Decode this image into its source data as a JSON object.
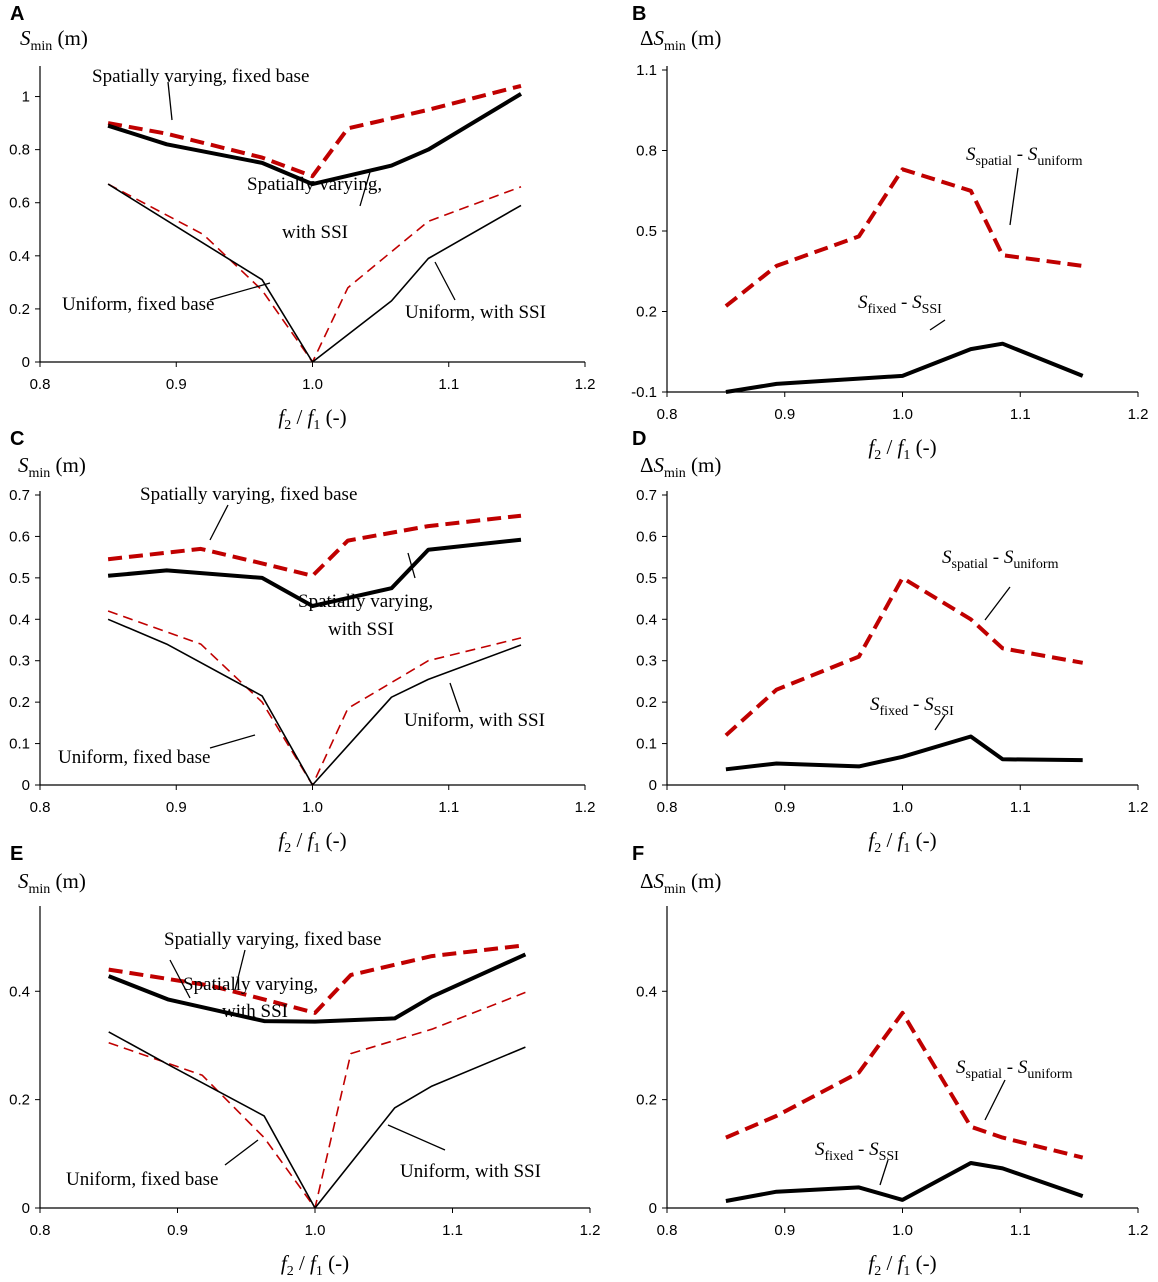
{
  "chart_data": [
    {
      "panel": "A",
      "type": "line",
      "ylabel_sym": "S",
      "ylabel_sub": "min",
      "ylabel_unit": " (m)",
      "xlabel_f2": "f",
      "xlabel_sub2": "2",
      "xlabel_sep": " / ",
      "xlabel_f1": "f",
      "xlabel_sub1": "1",
      "xlabel_unit": " (-)",
      "xlim": [
        0.8,
        1.2
      ],
      "ylim": [
        0,
        1.1
      ],
      "xticks": [
        0.8,
        0.9,
        1.0,
        1.1,
        1.2
      ],
      "xtick_labels": [
        "0.8",
        "0.9",
        "1.0",
        "1.1",
        "1.2"
      ],
      "yticks": [
        0,
        0.2,
        0.4,
        0.6,
        0.8,
        1.0
      ],
      "ytick_labels": [
        "0",
        "0.2",
        "0.4",
        "0.6",
        "0.8",
        "1"
      ],
      "series": [
        {
          "name": "Spatially varying, fixed base",
          "style": "thick-dashed",
          "color": "#c00000",
          "x": [
            0.85,
            0.893,
            0.963,
            1.0,
            1.026,
            1.085,
            1.153
          ],
          "y": [
            0.9,
            0.86,
            0.77,
            0.7,
            0.88,
            0.95,
            1.04
          ]
        },
        {
          "name": "Spatially varying, with SSI",
          "style": "thick-solid",
          "color": "#000000",
          "x": [
            0.85,
            0.893,
            0.963,
            1.0,
            1.058,
            1.085,
            1.153
          ],
          "y": [
            0.89,
            0.82,
            0.75,
            0.67,
            0.74,
            0.8,
            1.01
          ]
        },
        {
          "name": "Uniform, fixed base",
          "style": "thin-dashed",
          "color": "#c00000",
          "x": [
            0.85,
            0.92,
            0.963,
            1.0,
            1.026,
            1.085,
            1.153
          ],
          "y": [
            0.67,
            0.48,
            0.27,
            0.0,
            0.28,
            0.53,
            0.66
          ]
        },
        {
          "name": "Uniform, with SSI",
          "style": "thin-solid",
          "color": "#000000",
          "x": [
            0.85,
            0.963,
            1.0,
            1.058,
            1.085,
            1.153
          ],
          "y": [
            0.67,
            0.31,
            0.0,
            0.23,
            0.39,
            0.59
          ]
        }
      ],
      "annotations": [
        {
          "text": "Spatially varying, fixed base"
        },
        {
          "text": "Spatially varying,"
        },
        {
          "text": "with SSI"
        },
        {
          "text": "Uniform, fixed base"
        },
        {
          "text": "Uniform, with SSI"
        }
      ]
    },
    {
      "panel": "B",
      "type": "line",
      "ylabel_delta": "Δ",
      "ylabel_sym": "S",
      "ylabel_sub": "min",
      "ylabel_unit": " (m)",
      "xlabel_f2": "f",
      "xlabel_sub2": "2",
      "xlabel_sep": " / ",
      "xlabel_f1": "f",
      "xlabel_sub1": "1",
      "xlabel_unit": " (-)",
      "xlim": [
        0.8,
        1.2
      ],
      "ylim": [
        -0.1,
        1.1
      ],
      "xticks": [
        0.8,
        0.9,
        1.0,
        1.1,
        1.2
      ],
      "xtick_labels": [
        "0.8",
        "0.9",
        "1.0",
        "1.1",
        "1.2"
      ],
      "yticks": [
        -0.1,
        0.2,
        0.5,
        0.8,
        1.1
      ],
      "ytick_labels": [
        "-0.1",
        "0.2",
        "0.5",
        "0.8",
        "1.1"
      ],
      "series": [
        {
          "name": "S_spatial - S_uniform",
          "style": "thick-dashed",
          "color": "#c00000",
          "x": [
            0.85,
            0.893,
            0.963,
            1.0,
            1.058,
            1.085,
            1.153
          ],
          "y": [
            0.22,
            0.37,
            0.48,
            0.73,
            0.65,
            0.41,
            0.37
          ]
        },
        {
          "name": "S_fixed - S_SSI",
          "style": "thick-solid",
          "color": "#000000",
          "x": [
            0.85,
            0.893,
            0.963,
            1.0,
            1.058,
            1.085,
            1.153
          ],
          "y": [
            -0.1,
            -0.07,
            -0.05,
            -0.04,
            0.06,
            0.08,
            -0.04
          ]
        }
      ],
      "annotations": [
        {
          "sym": "S",
          "sub": "spatial",
          "sep": " - ",
          "sym2": "S",
          "sub2": "uniform"
        },
        {
          "sym": "S",
          "sub": "fixed",
          "sep": " - ",
          "sym2": "S",
          "sub2": "SSI"
        }
      ]
    },
    {
      "panel": "C",
      "type": "line",
      "ylabel_sym": "S",
      "ylabel_sub": "min",
      "ylabel_unit": " (m)",
      "xlabel_f2": "f",
      "xlabel_sub2": "2",
      "xlabel_sep": " / ",
      "xlabel_f1": "f",
      "xlabel_sub1": "1",
      "xlabel_unit": " (-)",
      "xlim": [
        0.8,
        1.2
      ],
      "ylim": [
        0,
        0.7
      ],
      "xticks": [
        0.8,
        0.9,
        1.0,
        1.1,
        1.2
      ],
      "xtick_labels": [
        "0.8",
        "0.9",
        "1.0",
        "1.1",
        "1.2"
      ],
      "yticks": [
        0,
        0.1,
        0.2,
        0.3,
        0.4,
        0.5,
        0.6,
        0.7
      ],
      "ytick_labels": [
        "0",
        "0.1",
        "0.2",
        "0.3",
        "0.4",
        "0.5",
        "0.6",
        "0.7"
      ],
      "series": [
        {
          "name": "Spatially varying, fixed base",
          "style": "thick-dashed",
          "color": "#c00000",
          "x": [
            0.85,
            0.918,
            0.963,
            1.0,
            1.026,
            1.085,
            1.153
          ],
          "y": [
            0.545,
            0.57,
            0.535,
            0.505,
            0.59,
            0.625,
            0.65
          ]
        },
        {
          "name": "Spatially varying, with SSI",
          "style": "thick-solid",
          "color": "#000000",
          "x": [
            0.85,
            0.893,
            0.963,
            1.0,
            1.058,
            1.085,
            1.153
          ],
          "y": [
            0.505,
            0.518,
            0.5,
            0.432,
            0.475,
            0.568,
            0.592
          ]
        },
        {
          "name": "Uniform, fixed base",
          "style": "thin-dashed",
          "color": "#c00000",
          "x": [
            0.85,
            0.918,
            0.963,
            1.0,
            1.026,
            1.085,
            1.153
          ],
          "y": [
            0.42,
            0.34,
            0.2,
            0.0,
            0.185,
            0.3,
            0.355
          ]
        },
        {
          "name": "Uniform, with SSI",
          "style": "thin-solid",
          "color": "#000000",
          "x": [
            0.85,
            0.893,
            0.963,
            1.0,
            1.058,
            1.085,
            1.153
          ],
          "y": [
            0.4,
            0.34,
            0.215,
            0.0,
            0.212,
            0.255,
            0.338
          ]
        }
      ],
      "annotations": [
        {
          "text": "Spatially varying, fixed base"
        },
        {
          "text": "Spatially varying,"
        },
        {
          "text": "with SSI"
        },
        {
          "text": "Uniform, fixed base"
        },
        {
          "text": "Uniform, with SSI"
        }
      ]
    },
    {
      "panel": "D",
      "type": "line",
      "ylabel_delta": "Δ",
      "ylabel_sym": "S",
      "ylabel_sub": "min",
      "ylabel_unit": " (m)",
      "xlabel_f2": "f",
      "xlabel_sub2": "2",
      "xlabel_sep": " / ",
      "xlabel_f1": "f",
      "xlabel_sub1": "1",
      "xlabel_unit": " (-)",
      "xlim": [
        0.8,
        1.2
      ],
      "ylim": [
        0,
        0.7
      ],
      "xticks": [
        0.8,
        0.9,
        1.0,
        1.1,
        1.2
      ],
      "xtick_labels": [
        "0.8",
        "0.9",
        "1.0",
        "1.1",
        "1.2"
      ],
      "yticks": [
        0,
        0.1,
        0.2,
        0.3,
        0.4,
        0.5,
        0.6,
        0.7
      ],
      "ytick_labels": [
        "0",
        "0.1",
        "0.2",
        "0.3",
        "0.4",
        "0.5",
        "0.6",
        "0.7"
      ],
      "series": [
        {
          "name": "S_spatial - S_uniform",
          "style": "thick-dashed",
          "color": "#c00000",
          "x": [
            0.85,
            0.893,
            0.963,
            1.0,
            1.058,
            1.085,
            1.153
          ],
          "y": [
            0.12,
            0.23,
            0.31,
            0.5,
            0.4,
            0.33,
            0.295
          ]
        },
        {
          "name": "S_fixed - S_SSI",
          "style": "thick-solid",
          "color": "#000000",
          "x": [
            0.85,
            0.893,
            0.963,
            1.0,
            1.058,
            1.085,
            1.153
          ],
          "y": [
            0.038,
            0.052,
            0.045,
            0.068,
            0.117,
            0.062,
            0.06
          ]
        }
      ],
      "annotations": [
        {
          "sym": "S",
          "sub": "spatial",
          "sep": " - ",
          "sym2": "S",
          "sub2": "uniform"
        },
        {
          "sym": "S",
          "sub": "fixed",
          "sep": " - ",
          "sym2": "S",
          "sub2": "SSI"
        }
      ]
    },
    {
      "panel": "E",
      "type": "line",
      "ylabel_sym": "S",
      "ylabel_sub": "min",
      "ylabel_unit": " (m)",
      "xlabel_f2": "f",
      "xlabel_sub2": "2",
      "xlabel_sep": " / ",
      "xlabel_f1": "f",
      "xlabel_sub1": "1",
      "xlabel_unit": " (-)",
      "xlim": [
        0.8,
        1.2
      ],
      "ylim": [
        0,
        0.55
      ],
      "xticks": [
        0.8,
        0.9,
        1.0,
        1.1,
        1.2
      ],
      "xtick_labels": [
        "0.8",
        "0.9",
        "1.0",
        "1.1",
        "1.2"
      ],
      "yticks": [
        0,
        0.2,
        0.4
      ],
      "ytick_labels": [
        "0",
        "0.2",
        "0.4"
      ],
      "series": [
        {
          "name": "Spatially varying, fixed base",
          "style": "thick-dashed",
          "color": "#c00000",
          "x": [
            0.85,
            0.925,
            0.963,
            1.0,
            1.026,
            1.085,
            1.153
          ],
          "y": [
            0.44,
            0.41,
            0.385,
            0.36,
            0.43,
            0.465,
            0.485
          ]
        },
        {
          "name": "Spatially varying, with SSI",
          "style": "thick-solid",
          "color": "#000000",
          "x": [
            0.85,
            0.893,
            0.963,
            1.0,
            1.058,
            1.085,
            1.153
          ],
          "y": [
            0.428,
            0.385,
            0.345,
            0.344,
            0.35,
            0.39,
            0.468
          ]
        },
        {
          "name": "Uniform, fixed base",
          "style": "thin-dashed",
          "color": "#c00000",
          "x": [
            0.85,
            0.918,
            0.963,
            1.0,
            1.026,
            1.085,
            1.153
          ],
          "y": [
            0.305,
            0.245,
            0.13,
            0.0,
            0.285,
            0.33,
            0.398
          ]
        },
        {
          "name": "Uniform, with SSI",
          "style": "thin-solid",
          "color": "#000000",
          "x": [
            0.85,
            0.893,
            0.963,
            1.0,
            1.058,
            1.085,
            1.153
          ],
          "y": [
            0.325,
            0.265,
            0.17,
            0.0,
            0.185,
            0.225,
            0.297
          ]
        }
      ],
      "annotations": [
        {
          "text": "Spatially varying, fixed base"
        },
        {
          "text": "Spatially varying,"
        },
        {
          "text": "with SSI"
        },
        {
          "text": "Uniform, fixed base"
        },
        {
          "text": "Uniform, with SSI"
        }
      ]
    },
    {
      "panel": "F",
      "type": "line",
      "ylabel_delta": "Δ",
      "ylabel_sym": "S",
      "ylabel_sub": "min",
      "ylabel_unit": " (m)",
      "xlabel_f2": "f",
      "xlabel_sub2": "2",
      "xlabel_sep": " / ",
      "xlabel_f1": "f",
      "xlabel_sub1": "1",
      "xlabel_unit": " (-)",
      "xlim": [
        0.8,
        1.2
      ],
      "ylim": [
        0,
        0.55
      ],
      "xticks": [
        0.8,
        0.9,
        1.0,
        1.1,
        1.2
      ],
      "xtick_labels": [
        "0.8",
        "0.9",
        "1.0",
        "1.1",
        "1.2"
      ],
      "yticks": [
        0,
        0.2,
        0.4
      ],
      "ytick_labels": [
        "0",
        "0.2",
        "0.4"
      ],
      "series": [
        {
          "name": "S_spatial - S_uniform",
          "style": "thick-dashed",
          "color": "#c00000",
          "x": [
            0.85,
            0.893,
            0.963,
            1.0,
            1.058,
            1.085,
            1.153
          ],
          "y": [
            0.13,
            0.17,
            0.25,
            0.36,
            0.15,
            0.13,
            0.093
          ]
        },
        {
          "name": "S_fixed - S_SSI",
          "style": "thick-solid",
          "color": "#000000",
          "x": [
            0.85,
            0.893,
            0.963,
            1.0,
            1.058,
            1.085,
            1.153
          ],
          "y": [
            0.013,
            0.03,
            0.038,
            0.015,
            0.083,
            0.073,
            0.022
          ]
        }
      ],
      "annotations": [
        {
          "sym": "S",
          "sub": "spatial",
          "sep": " - ",
          "sym2": "S",
          "sub2": "uniform"
        },
        {
          "sym": "S",
          "sub": "fixed",
          "sep": " - ",
          "sym2": "S",
          "sub2": "SSI"
        }
      ]
    }
  ]
}
